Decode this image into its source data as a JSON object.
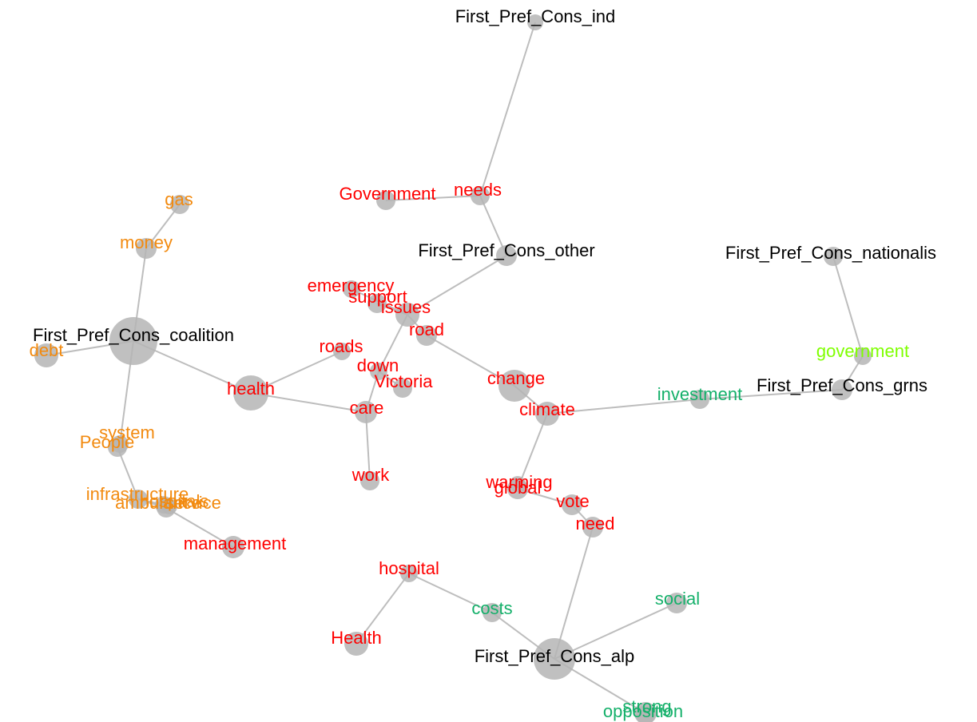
{
  "nodes": [
    {
      "label": "First_Pref_Cons_ind",
      "color": "#000000"
    },
    {
      "label": "needs",
      "color": "#ff0000"
    },
    {
      "label": "Government",
      "color": "#ff0000"
    },
    {
      "label": "First_Pref_Cons_other",
      "color": "#000000"
    },
    {
      "label": "emergency",
      "color": "#ff0000"
    },
    {
      "label": "support",
      "color": "#ff0000"
    },
    {
      "label": "issues",
      "color": "#ff0000"
    },
    {
      "label": "road",
      "color": "#ff0000"
    },
    {
      "label": "roads",
      "color": "#ff0000"
    },
    {
      "label": "down",
      "color": "#ff0000"
    },
    {
      "label": "Victoria",
      "color": "#ff0000"
    },
    {
      "label": "change",
      "color": "#ff0000"
    },
    {
      "label": "climate",
      "color": "#ff0000"
    },
    {
      "label": "health",
      "color": "#ff0000"
    },
    {
      "label": "care",
      "color": "#ff0000"
    },
    {
      "label": "work",
      "color": "#ff0000"
    },
    {
      "label": "First_Pref_Cons_coalition",
      "color": "#000000"
    },
    {
      "label": "debt",
      "color": "#f28a0f"
    },
    {
      "label": "money",
      "color": "#f28a0f"
    },
    {
      "label": "gas",
      "color": "#f28a0f"
    },
    {
      "label": "system",
      "color": "#f28a0f"
    },
    {
      "label": "People",
      "color": "#f28a0f"
    },
    {
      "label": "infrastructure",
      "color": "#f28a0f"
    },
    {
      "label": "ambulance",
      "color": "#f28a0f"
    },
    {
      "label": "hospitals",
      "color": "#f28a0f"
    },
    {
      "label": "service",
      "color": "#f28a0f"
    },
    {
      "label": "management",
      "color": "#ff0000"
    },
    {
      "label": "global",
      "color": "#ff0000"
    },
    {
      "label": "warming",
      "color": "#ff0000"
    },
    {
      "label": "vote",
      "color": "#ff0000"
    },
    {
      "label": "need",
      "color": "#ff0000"
    },
    {
      "label": "hospital",
      "color": "#ff0000"
    },
    {
      "label": "Health",
      "color": "#ff0000"
    },
    {
      "label": "costs",
      "color": "#14b06a"
    },
    {
      "label": "social",
      "color": "#14b06a"
    },
    {
      "label": "First_Pref_Cons_alp",
      "color": "#000000"
    },
    {
      "label": "strong",
      "color": "#14b06a"
    },
    {
      "label": "opposition",
      "color": "#14b06a"
    },
    {
      "label": "investment",
      "color": "#14b06a"
    },
    {
      "label": "First_Pref_Cons_grns",
      "color": "#000000"
    },
    {
      "label": "government",
      "color": "#7fff00"
    },
    {
      "label": "First_Pref_Cons_nationalis",
      "color": "#000000"
    }
  ],
  "edges": [
    [
      "First_Pref_Cons_ind",
      "needs"
    ],
    [
      "needs",
      "Government"
    ],
    [
      "needs",
      "First_Pref_Cons_other"
    ],
    [
      "First_Pref_Cons_other",
      "issues"
    ],
    [
      "issues",
      "support"
    ],
    [
      "issues",
      "emergency"
    ],
    [
      "issues",
      "road"
    ],
    [
      "road",
      "change"
    ],
    [
      "change",
      "climate"
    ],
    [
      "issues",
      "down"
    ],
    [
      "down",
      "care"
    ],
    [
      "down",
      "Victoria"
    ],
    [
      "health",
      "roads"
    ],
    [
      "health",
      "care"
    ],
    [
      "health",
      "First_Pref_Cons_coalition"
    ],
    [
      "care",
      "work"
    ],
    [
      "First_Pref_Cons_coalition",
      "money"
    ],
    [
      "money",
      "gas"
    ],
    [
      "First_Pref_Cons_coalition",
      "debt"
    ],
    [
      "First_Pref_Cons_coalition",
      "system"
    ],
    [
      "system",
      "People"
    ],
    [
      "People",
      "infrastructure"
    ],
    [
      "infrastructure",
      "ambulance"
    ],
    [
      "infrastructure",
      "hospitals"
    ],
    [
      "hospitals",
      "service"
    ],
    [
      "hospitals",
      "management"
    ],
    [
      "climate",
      "investment"
    ],
    [
      "investment",
      "First_Pref_Cons_grns"
    ],
    [
      "First_Pref_Cons_grns",
      "government"
    ],
    [
      "government",
      "First_Pref_Cons_nationalis"
    ],
    [
      "climate",
      "global"
    ],
    [
      "global",
      "warming"
    ],
    [
      "global",
      "vote"
    ],
    [
      "vote",
      "need"
    ],
    [
      "need",
      "First_Pref_Cons_alp"
    ],
    [
      "First_Pref_Cons_alp",
      "costs"
    ],
    [
      "costs",
      "hospital"
    ],
    [
      "hospital",
      "Health"
    ],
    [
      "First_Pref_Cons_alp",
      "social"
    ],
    [
      "First_Pref_Cons_alp",
      "strong"
    ],
    [
      "strong",
      "opposition"
    ]
  ]
}
